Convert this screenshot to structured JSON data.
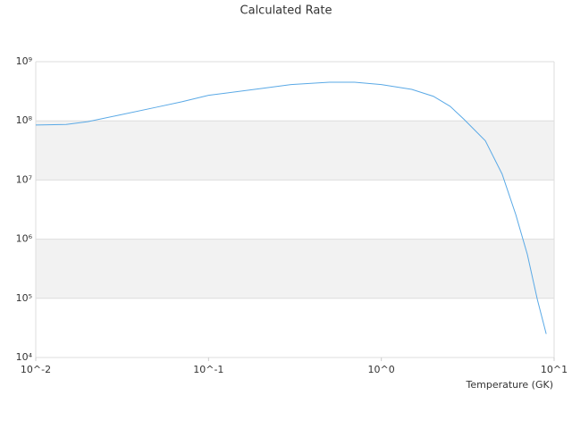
{
  "chart_data": {
    "type": "line",
    "title": "Calculated Rate",
    "x_label": "Temperature (GK)",
    "log_x": true,
    "log_y": true,
    "xlim": [
      0.01,
      10
    ],
    "ylim": [
      10000,
      1000000000
    ],
    "xticks": [
      {
        "value": 0.01,
        "label": "10^-2"
      },
      {
        "value": 0.1,
        "label": "10^-1"
      },
      {
        "value": 1,
        "label": "10^0"
      },
      {
        "value": 10,
        "label": "10^1"
      }
    ],
    "yticks": [
      {
        "value": 10000,
        "label": "10⁴"
      },
      {
        "value": 100000,
        "label": "10⁵"
      },
      {
        "value": 1000000,
        "label": "10⁶"
      },
      {
        "value": 10000000,
        "label": "10⁷"
      },
      {
        "value": 100000000,
        "label": "10⁸"
      },
      {
        "value": 1000000000,
        "label": "10⁹"
      }
    ],
    "band_color": "#f2f2f2",
    "x": [
      0.01,
      0.015,
      0.02,
      0.03,
      0.05,
      0.07,
      0.1,
      0.2,
      0.3,
      0.5,
      0.7,
      1,
      1.5,
      2,
      2.5,
      3,
      4,
      5,
      6,
      7,
      8,
      9
    ],
    "series": [
      {
        "color": "#5aa9e6",
        "values": [
          85000000,
          87000000,
          97000000,
          124000000,
          170000000,
          210000000,
          270000000,
          350000000,
          410000000,
          450000000,
          450000000,
          410000000,
          340000000,
          260000000,
          176000000,
          107000000,
          46000000,
          12600000,
          2600000,
          550000,
          95000,
          25000
        ]
      }
    ]
  }
}
